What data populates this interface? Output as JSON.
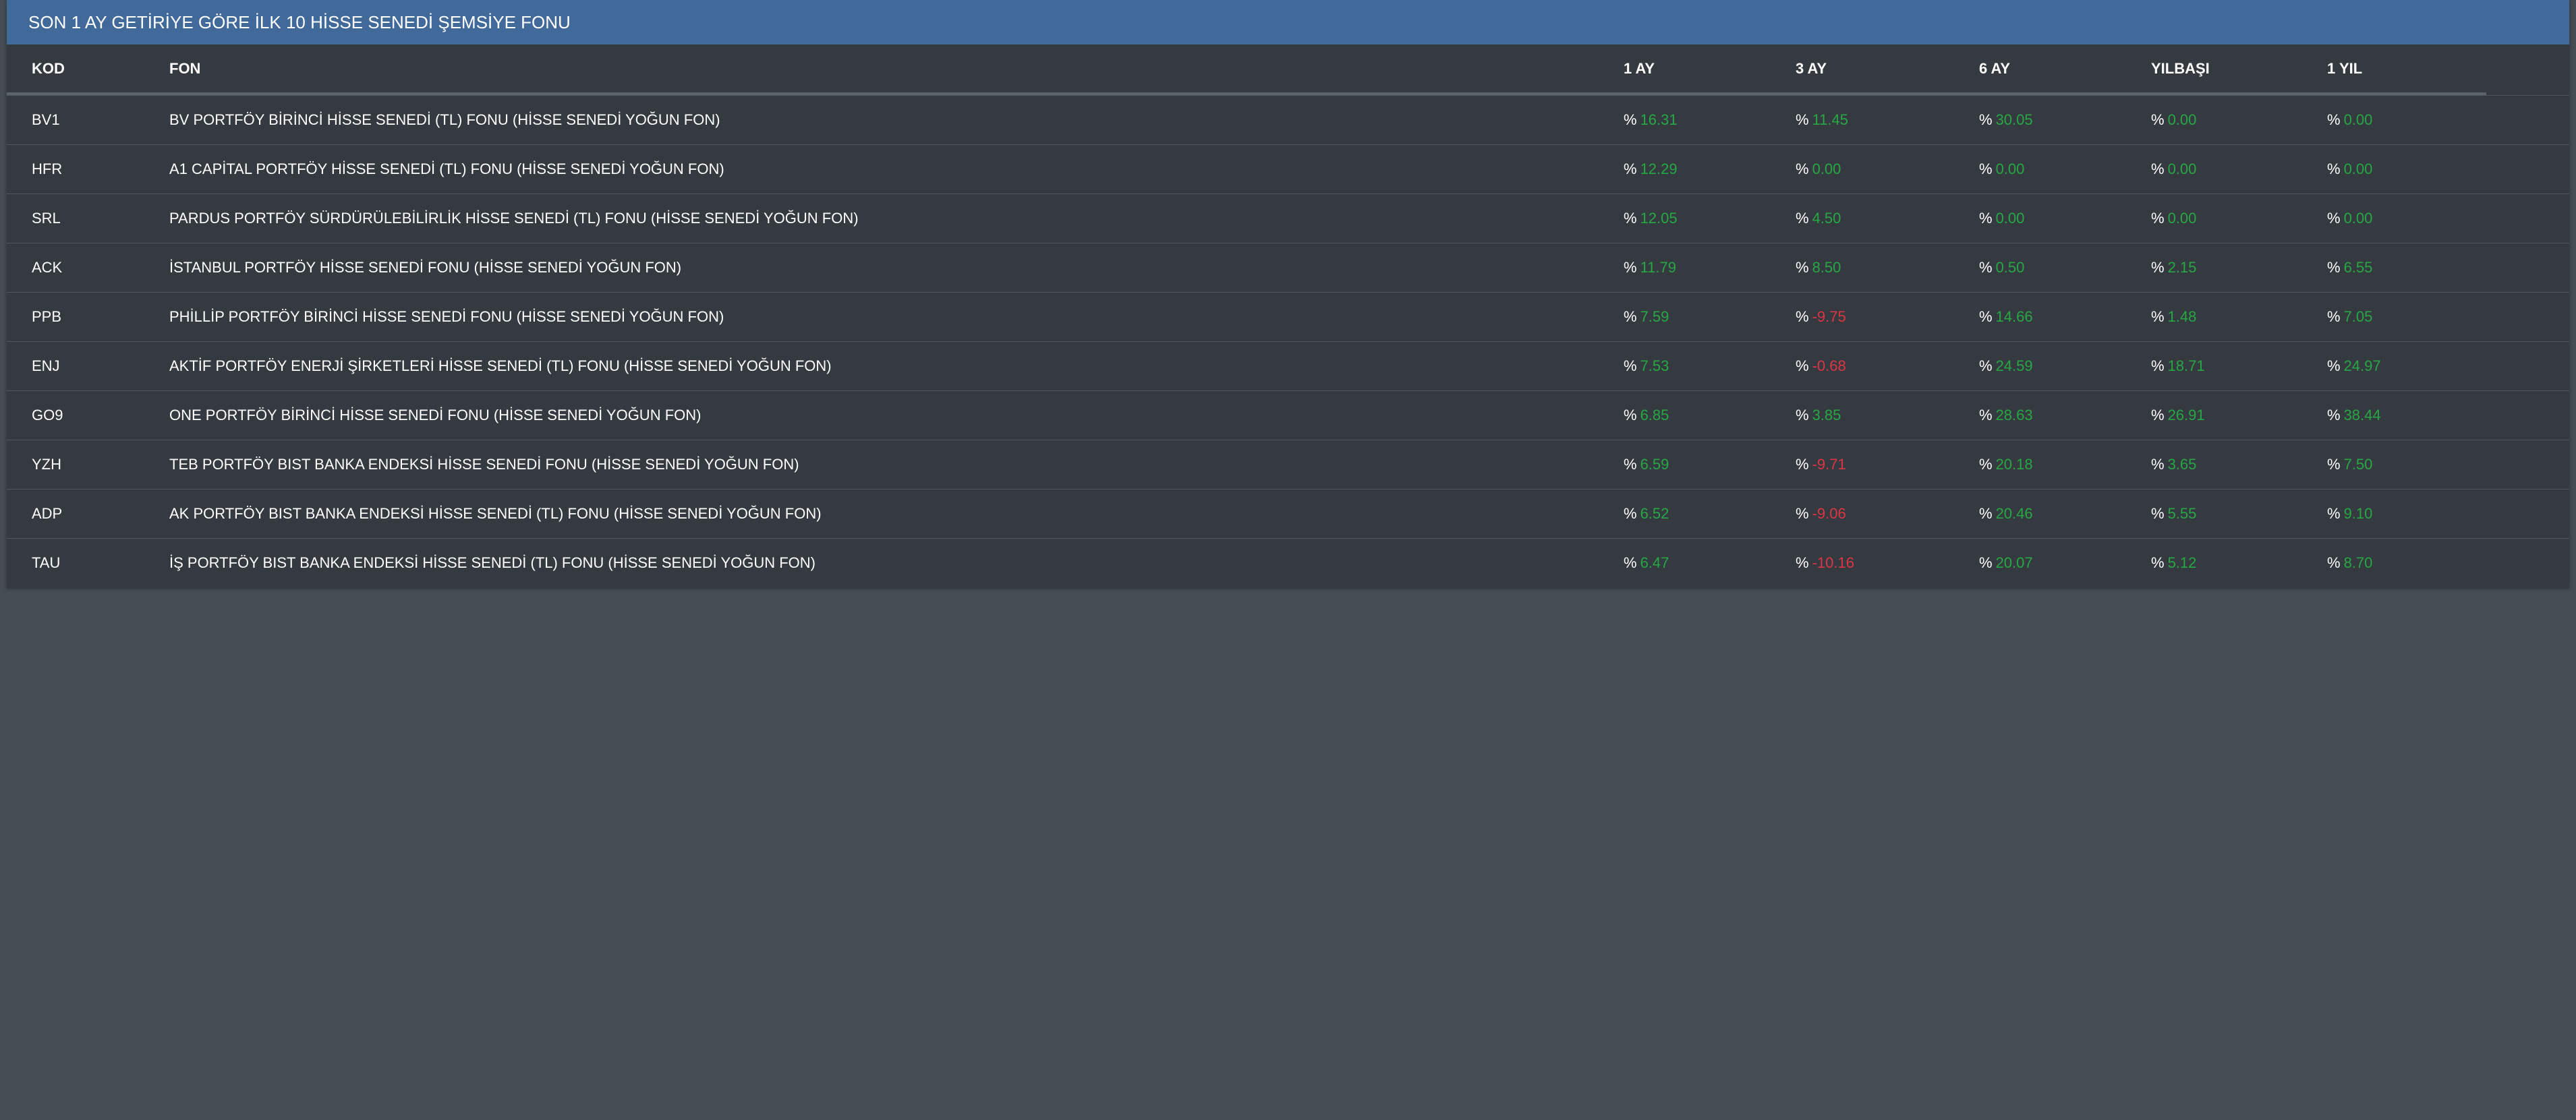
{
  "panel": {
    "title": "SON 1 AY GETİRİYE GÖRE İLK 10 HİSSE SENEDİ ŞEMSİYE FONU"
  },
  "table": {
    "columns": [
      "KOD",
      "FON",
      "1 AY",
      "3 AY",
      "6 AY",
      "YILBAŞI",
      "1 YIL"
    ],
    "percent_symbol": "%",
    "rows": [
      {
        "kod": "BV1",
        "fon": "BV PORTFÖY BİRİNCİ HİSSE SENEDİ (TL) FONU (HİSSE SENEDİ YOĞUN FON)",
        "m1": "16.31",
        "m3": "11.45",
        "m6": "30.05",
        "ytd": "0.00",
        "y1": "0.00"
      },
      {
        "kod": "HFR",
        "fon": "A1 CAPİTAL PORTFÖY HİSSE SENEDİ (TL) FONU (HİSSE SENEDİ YOĞUN FON)",
        "m1": "12.29",
        "m3": "0.00",
        "m6": "0.00",
        "ytd": "0.00",
        "y1": "0.00"
      },
      {
        "kod": "SRL",
        "fon": "PARDUS PORTFÖY SÜRDÜRÜLEBİLİRLİK HİSSE SENEDİ (TL) FONU (HİSSE SENEDİ YOĞUN FON)",
        "m1": "12.05",
        "m3": "4.50",
        "m6": "0.00",
        "ytd": "0.00",
        "y1": "0.00"
      },
      {
        "kod": "ACK",
        "fon": "İSTANBUL PORTFÖY HİSSE SENEDİ FONU (HİSSE SENEDİ YOĞUN FON)",
        "m1": "11.79",
        "m3": "8.50",
        "m6": "0.50",
        "ytd": "2.15",
        "y1": "6.55"
      },
      {
        "kod": "PPB",
        "fon": "PHİLLİP PORTFÖY BİRİNCİ HİSSE SENEDİ FONU (HİSSE SENEDİ YOĞUN FON)",
        "m1": "7.59",
        "m3": "-9.75",
        "m6": "14.66",
        "ytd": "1.48",
        "y1": "7.05"
      },
      {
        "kod": "ENJ",
        "fon": "AKTİF PORTFÖY ENERJİ ŞİRKETLERİ HİSSE SENEDİ (TL) FONU (HİSSE SENEDİ YOĞUN FON)",
        "m1": "7.53",
        "m3": "-0.68",
        "m6": "24.59",
        "ytd": "18.71",
        "y1": "24.97"
      },
      {
        "kod": "GO9",
        "fon": "ONE PORTFÖY BİRİNCİ HİSSE SENEDİ FONU (HİSSE SENEDİ YOĞUN FON)",
        "m1": "6.85",
        "m3": "3.85",
        "m6": "28.63",
        "ytd": "26.91",
        "y1": "38.44"
      },
      {
        "kod": "YZH",
        "fon": "TEB PORTFÖY BIST BANKA ENDEKSİ HİSSE SENEDİ FONU (HİSSE SENEDİ YOĞUN FON)",
        "m1": "6.59",
        "m3": "-9.71",
        "m6": "20.18",
        "ytd": "3.65",
        "y1": "7.50"
      },
      {
        "kod": "ADP",
        "fon": "AK PORTFÖY BIST BANKA ENDEKSİ HİSSE SENEDİ (TL) FONU (HİSSE SENEDİ YOĞUN FON)",
        "m1": "6.52",
        "m3": "-9.06",
        "m6": "20.46",
        "ytd": "5.55",
        "y1": "9.10"
      },
      {
        "kod": "TAU",
        "fon": "İŞ PORTFÖY BIST BANKA ENDEKSİ HİSSE SENEDİ (TL) FONU (HİSSE SENEDİ YOĞUN FON)",
        "m1": "6.47",
        "m3": "-10.16",
        "m6": "20.07",
        "ytd": "5.12",
        "y1": "8.70"
      }
    ]
  },
  "colors": {
    "page_background": "#454d55",
    "panel_background": "#343a40",
    "header_bar": "#41699a",
    "positive": "#28a745",
    "negative": "#dc3545"
  }
}
